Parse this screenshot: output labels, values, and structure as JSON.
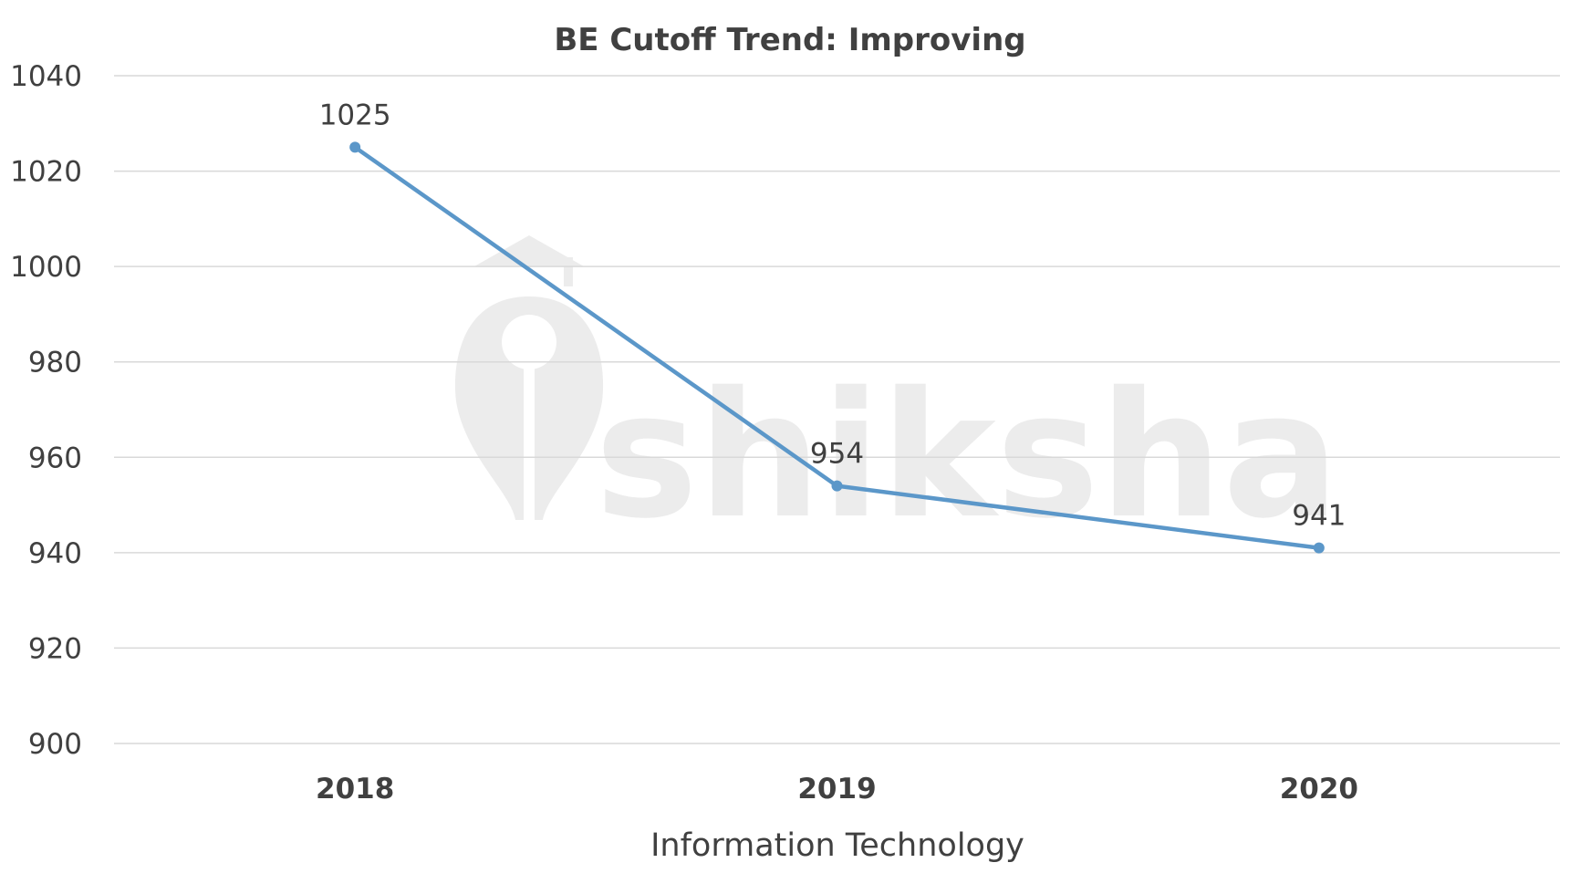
{
  "watermark": {
    "text": "shiksha"
  },
  "chart_data": {
    "type": "line",
    "title": "BE Cutoff Trend: Improving",
    "xlabel": "Information Technology",
    "ylabel": "",
    "categories": [
      "2018",
      "2019",
      "2020"
    ],
    "series": [
      {
        "values": [
          1025,
          954,
          941
        ],
        "color": "#5b97c9"
      }
    ],
    "data_labels": [
      "1025",
      "954",
      "941"
    ],
    "ylim": [
      900,
      1040
    ],
    "yticks": [
      900,
      920,
      940,
      960,
      980,
      1000,
      1020,
      1040
    ],
    "ytick_labels": [
      "900",
      "920",
      "940",
      "960",
      "980",
      "1000",
      "1020",
      "1040"
    ],
    "grid": true,
    "legend": "none"
  }
}
